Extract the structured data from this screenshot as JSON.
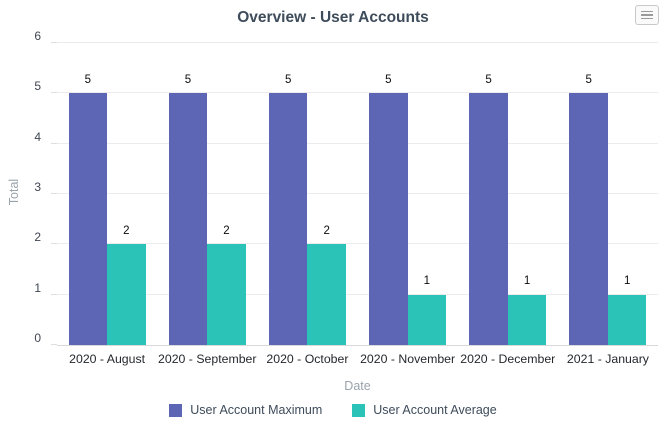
{
  "toolbar": {
    "menu_icon": "hamburger-menu-icon"
  },
  "chart_data": {
    "type": "bar",
    "title": "Overview - User Accounts",
    "xlabel": "Date",
    "ylabel": "Total",
    "categories": [
      "2020 - August",
      "2020 - September",
      "2020 - October",
      "2020 - November",
      "2020 - December",
      "2021 - January"
    ],
    "series": [
      {
        "name": "User Account Maximum",
        "color": "#5c66b5",
        "values": [
          5,
          5,
          5,
          5,
          5,
          5
        ]
      },
      {
        "name": "User Account Average",
        "color": "#2bc3b7",
        "values": [
          2,
          2,
          2,
          1,
          1,
          1
        ]
      }
    ],
    "ylim": [
      0,
      6
    ],
    "y_ticks": [
      0,
      1,
      2,
      3,
      4,
      5,
      6
    ],
    "grid": true,
    "data_labels": true,
    "legend_position": "bottom"
  }
}
